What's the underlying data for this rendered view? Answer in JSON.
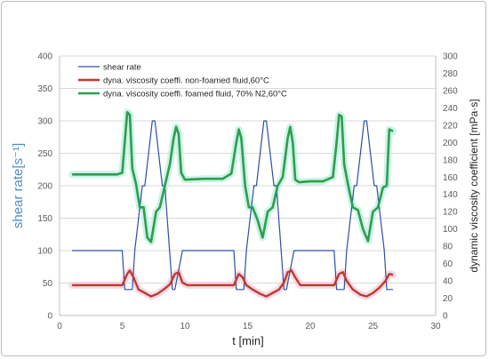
{
  "chart_data": {
    "type": "line",
    "xlabel": "t [min]",
    "ylabel_left": "shear rate[s⁻¹]",
    "ylabel_right": "dynamic viscosity coefficient [mPa·s]",
    "xlim": [
      0,
      30
    ],
    "ylim_left": [
      0,
      400
    ],
    "ylim_right": [
      0,
      300
    ],
    "x_ticks": [
      "0",
      "5",
      "10",
      "15",
      "20",
      "25",
      "30"
    ],
    "y_left_ticks": [
      "0",
      "50",
      "100",
      "150",
      "200",
      "250",
      "300",
      "350",
      "400"
    ],
    "y_right_ticks": [
      "0",
      "20",
      "40",
      "60",
      "80",
      "100",
      "120",
      "140",
      "160",
      "180",
      "200",
      "220",
      "240",
      "260",
      "280",
      "300"
    ],
    "grid": true,
    "legend_position": "top-left",
    "series": [
      {
        "name": "shear rate",
        "axis": "left",
        "color": "#2e4fa3",
        "x": [
          1.0,
          5.0,
          5.2,
          5.8,
          6.0,
          6.6,
          6.8,
          7.4,
          7.6,
          8.2,
          8.4,
          9.0,
          9.2,
          9.8,
          10.0,
          13.9,
          14.1,
          14.7,
          14.9,
          15.5,
          15.7,
          16.3,
          16.5,
          17.1,
          17.3,
          17.9,
          18.1,
          18.7,
          18.9,
          21.9,
          22.1,
          22.7,
          22.9,
          23.5,
          23.7,
          24.3,
          24.5,
          25.1,
          25.3,
          25.9,
          26.1,
          26.6
        ],
        "y": [
          100,
          100,
          40,
          40,
          100,
          200,
          200,
          300,
          300,
          200,
          200,
          40,
          40,
          100,
          100,
          100,
          40,
          40,
          100,
          200,
          200,
          300,
          300,
          200,
          200,
          40,
          40,
          100,
          100,
          100,
          40,
          40,
          100,
          200,
          200,
          300,
          300,
          200,
          200,
          100,
          40,
          40
        ]
      },
      {
        "name": "dyna. viscosity coeffi. non-foamed fluid,60°C",
        "axis": "right",
        "color": "#c0392b",
        "x": [
          1.0,
          3.0,
          5.0,
          5.4,
          5.6,
          5.9,
          6.3,
          6.8,
          7.3,
          7.8,
          8.3,
          8.8,
          9.2,
          9.5,
          9.8,
          10.2,
          12.0,
          13.9,
          14.3,
          14.6,
          14.9,
          15.4,
          16.0,
          16.5,
          17.0,
          17.5,
          17.9,
          18.2,
          18.5,
          18.8,
          19.2,
          21.0,
          21.9,
          22.3,
          22.6,
          22.9,
          23.4,
          24.0,
          24.5,
          25.0,
          25.5,
          26.0,
          26.3,
          26.6
        ],
        "y": [
          35,
          35,
          35,
          48,
          52,
          44,
          30,
          26,
          22,
          25,
          30,
          36,
          48,
          50,
          38,
          35,
          35,
          35,
          48,
          44,
          35,
          30,
          25,
          22,
          26,
          30,
          38,
          50,
          52,
          44,
          35,
          35,
          35,
          48,
          50,
          40,
          30,
          24,
          22,
          26,
          32,
          40,
          48,
          47
        ]
      },
      {
        "name": "dyna. viscosity coeffi. foamed fluid, 70% N2,60°C",
        "axis": "right",
        "color": "#2e9e4a",
        "x": [
          1.0,
          3.0,
          4.6,
          5.0,
          5.2,
          5.4,
          5.6,
          5.8,
          6.1,
          6.4,
          6.7,
          7.0,
          7.3,
          7.7,
          8.0,
          8.4,
          8.8,
          9.1,
          9.3,
          9.5,
          9.7,
          10.0,
          11.5,
          13.0,
          13.7,
          14.1,
          14.3,
          14.5,
          14.8,
          15.1,
          15.4,
          15.8,
          16.2,
          16.6,
          17.0,
          17.4,
          17.8,
          18.2,
          18.4,
          18.6,
          18.8,
          19.1,
          20.0,
          21.0,
          21.8,
          22.1,
          22.3,
          22.5,
          22.7,
          23.0,
          23.4,
          23.8,
          24.2,
          24.6,
          25.0,
          25.4,
          25.8,
          26.1,
          26.3,
          26.6
        ],
        "y": [
          163,
          163,
          163,
          165,
          200,
          235,
          232,
          170,
          152,
          125,
          125,
          90,
          85,
          120,
          125,
          150,
          175,
          205,
          218,
          210,
          165,
          157,
          158,
          158,
          164,
          200,
          215,
          205,
          150,
          125,
          125,
          110,
          90,
          120,
          125,
          150,
          160,
          205,
          218,
          200,
          157,
          154,
          155,
          155,
          160,
          200,
          232,
          230,
          175,
          152,
          125,
          122,
          100,
          86,
          120,
          125,
          148,
          150,
          215,
          213
        ]
      }
    ]
  }
}
